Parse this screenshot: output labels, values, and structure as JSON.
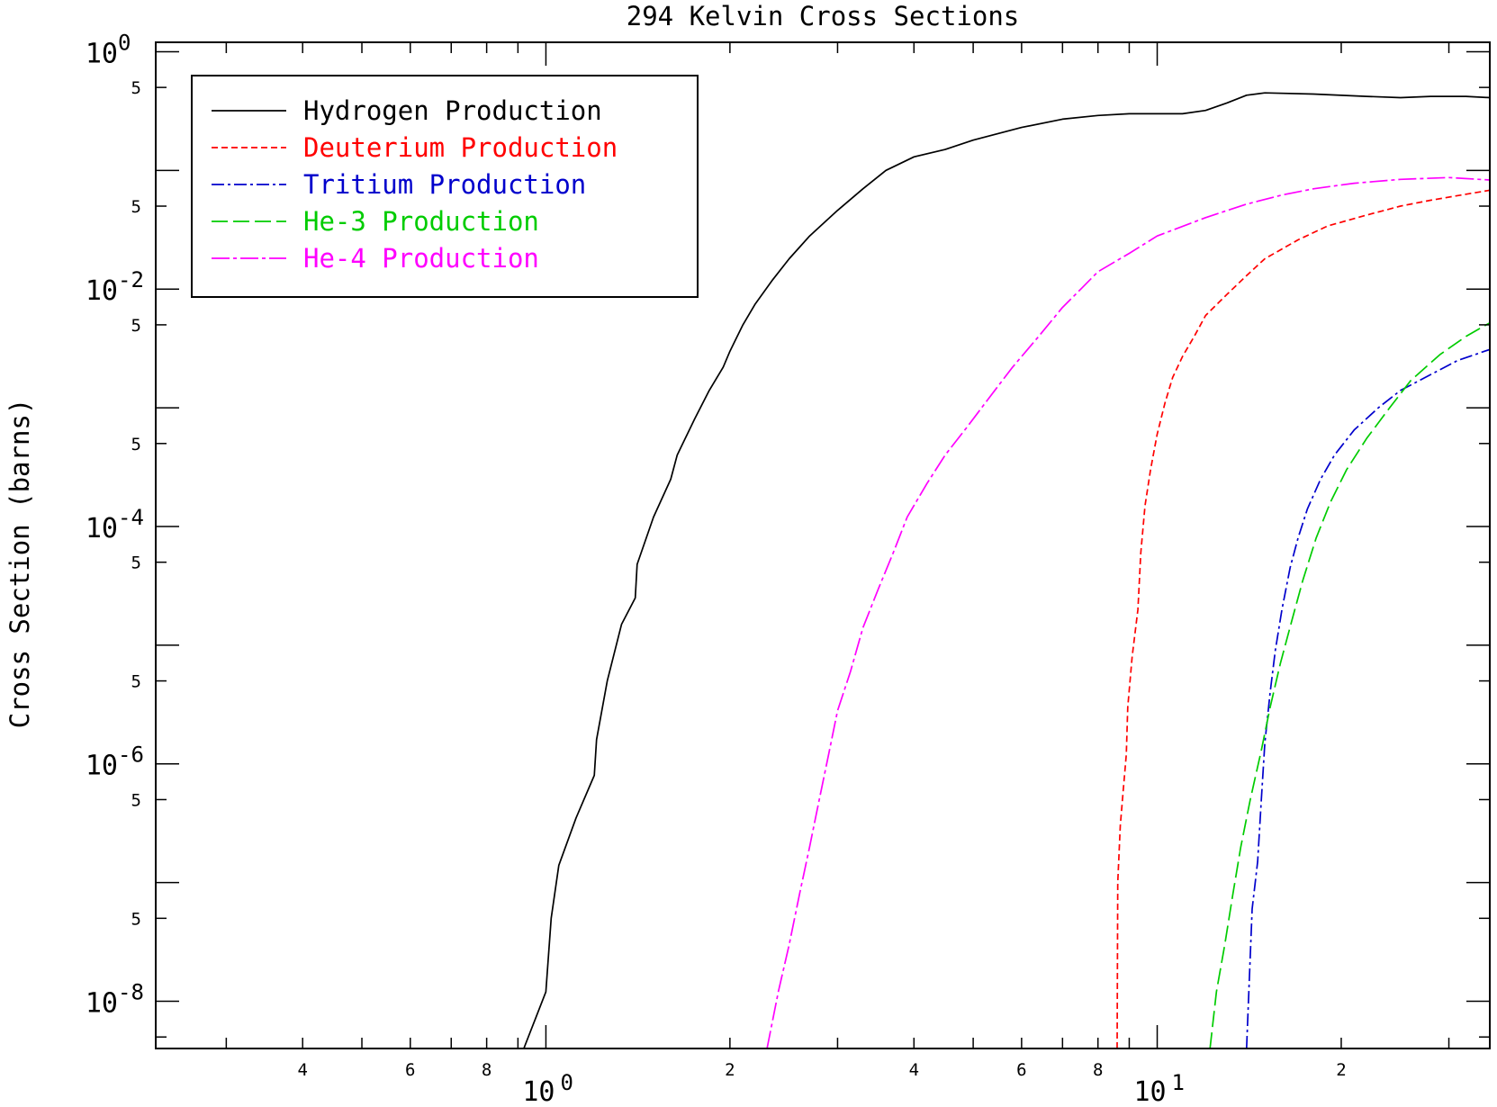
{
  "chart_data": {
    "type": "line",
    "title": "294 Kelvin Cross Sections",
    "xlabel": "",
    "ylabel": "Cross Section (barns)",
    "x_scale": "log",
    "y_scale": "log",
    "xlim": [
      0.23,
      35
    ],
    "ylim": [
      4e-09,
      1.2
    ],
    "grid": false,
    "legend_position": "top-left",
    "x_major_ticks": [
      {
        "value": 1,
        "base": "10",
        "exp": "0"
      },
      {
        "value": 10,
        "base": "10",
        "exp": "1"
      }
    ],
    "x_minor_labels": [
      {
        "value": 0.4,
        "label": "4"
      },
      {
        "value": 0.6,
        "label": "6"
      },
      {
        "value": 0.8,
        "label": "8"
      },
      {
        "value": 2,
        "label": "2"
      },
      {
        "value": 4,
        "label": "4"
      },
      {
        "value": 6,
        "label": "6"
      },
      {
        "value": 8,
        "label": "8"
      },
      {
        "value": 20,
        "label": "2"
      }
    ],
    "y_major_ticks": [
      {
        "value": 1,
        "base": "10",
        "exp": "0"
      },
      {
        "value": 0.01,
        "base": "10",
        "exp": "-2"
      },
      {
        "value": 0.0001,
        "base": "10",
        "exp": "-4"
      },
      {
        "value": 1e-06,
        "base": "10",
        "exp": "-6"
      },
      {
        "value": 1e-08,
        "base": "10",
        "exp": "-8"
      }
    ],
    "y_unlabeled_ticks": [
      0.1,
      0.001,
      1e-05,
      1e-07
    ],
    "y_minor_labels": [
      {
        "value": 0.5,
        "label": "5"
      },
      {
        "value": 0.05,
        "label": "5"
      },
      {
        "value": 0.005,
        "label": "5"
      },
      {
        "value": 0.0005,
        "label": "5"
      },
      {
        "value": 5e-05,
        "label": "5"
      },
      {
        "value": 5e-06,
        "label": "5"
      },
      {
        "value": 5e-07,
        "label": "5"
      },
      {
        "value": 5e-08,
        "label": "5"
      }
    ],
    "series": [
      {
        "name": "Hydrogen Production",
        "color": "#000000",
        "dash": "solid",
        "points": [
          [
            0.92,
            4e-09
          ],
          [
            0.96,
            7e-09
          ],
          [
            1.0,
            1.2e-08
          ],
          [
            1.02,
            5e-08
          ],
          [
            1.05,
            1.4e-07
          ],
          [
            1.12,
            3.5e-07
          ],
          [
            1.2,
            8e-07
          ],
          [
            1.21,
            1.6e-06
          ],
          [
            1.26,
            5e-06
          ],
          [
            1.33,
            1.5e-05
          ],
          [
            1.4,
            2.5e-05
          ],
          [
            1.41,
            4.8e-05
          ],
          [
            1.5,
            0.00012
          ],
          [
            1.6,
            0.00025
          ],
          [
            1.64,
            0.0004
          ],
          [
            1.75,
            0.0008
          ],
          [
            1.85,
            0.0014
          ],
          [
            1.95,
            0.0022
          ],
          [
            2.0,
            0.003
          ],
          [
            2.1,
            0.005
          ],
          [
            2.2,
            0.0075
          ],
          [
            2.35,
            0.012
          ],
          [
            2.5,
            0.018
          ],
          [
            2.7,
            0.028
          ],
          [
            3.0,
            0.046
          ],
          [
            3.3,
            0.07
          ],
          [
            3.6,
            0.1
          ],
          [
            4.0,
            0.13
          ],
          [
            4.5,
            0.15
          ],
          [
            5.0,
            0.18
          ],
          [
            6.0,
            0.23
          ],
          [
            7.0,
            0.27
          ],
          [
            8.0,
            0.29
          ],
          [
            9.0,
            0.3
          ],
          [
            10.0,
            0.3
          ],
          [
            11.0,
            0.3
          ],
          [
            12.0,
            0.32
          ],
          [
            13.0,
            0.37
          ],
          [
            14.0,
            0.43
          ],
          [
            15.0,
            0.45
          ],
          [
            18.0,
            0.44
          ],
          [
            22.0,
            0.42
          ],
          [
            25.0,
            0.41
          ],
          [
            28.0,
            0.42
          ],
          [
            32.0,
            0.42
          ],
          [
            35.0,
            0.41
          ]
        ]
      },
      {
        "name": "Deuterium Production",
        "color": "#ff0000",
        "dash": "7,4",
        "points": [
          [
            8.6,
            4e-09
          ],
          [
            8.62,
            1e-07
          ],
          [
            8.7,
            3e-07
          ],
          [
            8.8,
            6e-07
          ],
          [
            8.9,
            1.2e-06
          ],
          [
            8.95,
            3e-06
          ],
          [
            9.1,
            8e-06
          ],
          [
            9.3,
            2e-05
          ],
          [
            9.4,
            6e-05
          ],
          [
            9.55,
            0.00015
          ],
          [
            9.75,
            0.0003
          ],
          [
            10.0,
            0.0006
          ],
          [
            10.3,
            0.0011
          ],
          [
            10.6,
            0.0018
          ],
          [
            11.0,
            0.0027
          ],
          [
            11.5,
            0.004
          ],
          [
            12.0,
            0.006
          ],
          [
            13.0,
            0.009
          ],
          [
            14.0,
            0.013
          ],
          [
            15.0,
            0.018
          ],
          [
            17.0,
            0.026
          ],
          [
            19.0,
            0.034
          ],
          [
            22.0,
            0.042
          ],
          [
            25.0,
            0.05
          ],
          [
            28.0,
            0.056
          ],
          [
            32.0,
            0.063
          ],
          [
            35.0,
            0.068
          ]
        ]
      },
      {
        "name": "Tritium Production",
        "color": "#0000cc",
        "dash": "14,4,3,4",
        "points": [
          [
            14.0,
            4e-09
          ],
          [
            14.1,
            1e-08
          ],
          [
            14.3,
            6e-08
          ],
          [
            14.6,
            1.5e-07
          ],
          [
            14.8,
            5e-07
          ],
          [
            15.0,
            1.5e-06
          ],
          [
            15.3,
            4e-06
          ],
          [
            15.6,
            9e-06
          ],
          [
            16.0,
            2e-05
          ],
          [
            16.5,
            4.5e-05
          ],
          [
            17.0,
            8e-05
          ],
          [
            17.6,
            0.00014
          ],
          [
            18.5,
            0.00025
          ],
          [
            19.5,
            0.0004
          ],
          [
            21.0,
            0.00065
          ],
          [
            23.0,
            0.001
          ],
          [
            25.0,
            0.0014
          ],
          [
            28.0,
            0.0019
          ],
          [
            31.0,
            0.0025
          ],
          [
            35.0,
            0.0031
          ]
        ]
      },
      {
        "name": "He-3 Production",
        "color": "#00cc00",
        "dash": "18,6",
        "points": [
          [
            12.2,
            4e-09
          ],
          [
            12.5,
            1.2e-08
          ],
          [
            12.9,
            3e-08
          ],
          [
            13.3,
            8e-08
          ],
          [
            13.7,
            2e-07
          ],
          [
            14.2,
            5e-07
          ],
          [
            14.8,
            1.3e-06
          ],
          [
            15.3,
            3e-06
          ],
          [
            15.9,
            7e-06
          ],
          [
            16.6,
            1.6e-05
          ],
          [
            17.3,
            3.5e-05
          ],
          [
            18.2,
            8e-05
          ],
          [
            19.2,
            0.00016
          ],
          [
            20.4,
            0.0003
          ],
          [
            22.0,
            0.00055
          ],
          [
            24.0,
            0.001
          ],
          [
            26.0,
            0.0017
          ],
          [
            29.0,
            0.0028
          ],
          [
            32.0,
            0.004
          ],
          [
            35.0,
            0.0052
          ]
        ]
      },
      {
        "name": "He-4 Production",
        "color": "#ff00ff",
        "dash": "20,4,4,4",
        "points": [
          [
            2.3,
            4e-09
          ],
          [
            2.4,
            1.2e-08
          ],
          [
            2.5,
            3e-08
          ],
          [
            2.6,
            8e-08
          ],
          [
            2.7,
            2e-07
          ],
          [
            2.8,
            5e-07
          ],
          [
            2.9,
            1.2e-06
          ],
          [
            3.0,
            2.8e-06
          ],
          [
            3.15,
            6e-06
          ],
          [
            3.3,
            1.4e-05
          ],
          [
            3.5,
            3e-05
          ],
          [
            3.7,
            6e-05
          ],
          [
            3.9,
            0.00012
          ],
          [
            4.2,
            0.00023
          ],
          [
            4.5,
            0.0004
          ],
          [
            4.9,
            0.0007
          ],
          [
            5.3,
            0.0012
          ],
          [
            5.8,
            0.0022
          ],
          [
            6.4,
            0.004
          ],
          [
            7.0,
            0.007
          ],
          [
            7.5,
            0.01
          ],
          [
            8.0,
            0.014
          ],
          [
            9.0,
            0.02
          ],
          [
            10.0,
            0.028
          ],
          [
            12.0,
            0.04
          ],
          [
            14.0,
            0.052
          ],
          [
            16.0,
            0.062
          ],
          [
            18.0,
            0.07
          ],
          [
            21.0,
            0.078
          ],
          [
            25.0,
            0.084
          ],
          [
            30.0,
            0.087
          ],
          [
            35.0,
            0.083
          ]
        ]
      }
    ]
  }
}
